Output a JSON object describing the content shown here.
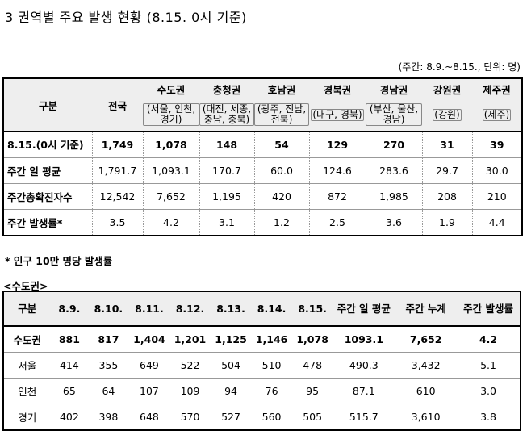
{
  "title": "3 권역별 주요 발생 현황 (8.15. 0시 기준)",
  "unit_note": "(주간: 8.9.~8.15., 단위: 명)",
  "table1": {
    "corner": "구분",
    "total_header": "전국",
    "regions": [
      {
        "name": "수도권",
        "sub": "(서울, 인천, 경기)"
      },
      {
        "name": "충청권",
        "sub": "(대전, 세종, 충남, 충북)"
      },
      {
        "name": "호남권",
        "sub": "(광주, 전남, 전북)"
      },
      {
        "name": "경북권",
        "sub": "(대구, 경북)"
      },
      {
        "name": "경남권",
        "sub": "(부산, 울산, 경남)"
      },
      {
        "name": "강원권",
        "sub": "(강원)"
      },
      {
        "name": "제주권",
        "sub": "(제주)"
      }
    ],
    "rows": [
      {
        "label": "8.15.(0시 기준)",
        "values": [
          "1,749",
          "1,078",
          "148",
          "54",
          "129",
          "270",
          "31",
          "39"
        ]
      },
      {
        "label": "주간 일 평균",
        "values": [
          "1,791.7",
          "1,093.1",
          "170.7",
          "60.0",
          "124.6",
          "283.6",
          "29.7",
          "30.0"
        ]
      },
      {
        "label": "주간총확진자수",
        "values": [
          "12,542",
          "7,652",
          "1,195",
          "420",
          "872",
          "1,985",
          "208",
          "210"
        ]
      },
      {
        "label": "주간 발생률*",
        "values": [
          "3.5",
          "4.2",
          "3.1",
          "1.2",
          "2.5",
          "3.6",
          "1.9",
          "4.4"
        ]
      }
    ]
  },
  "footnote": "* 인구 10만 명당 발생률",
  "section_label": "<수도권>",
  "table2": {
    "headers": [
      "구분",
      "8.9.",
      "8.10.",
      "8.11.",
      "8.12.",
      "8.13.",
      "8.14.",
      "8.15.",
      "주간 일 평균",
      "주간 누계",
      "주간 발생률"
    ],
    "rows": [
      {
        "label": "수도권",
        "values": [
          "881",
          "817",
          "1,404",
          "1,201",
          "1,125",
          "1,146",
          "1,078",
          "1093.1",
          "7,652",
          "4.2"
        ]
      },
      {
        "label": "서울",
        "values": [
          "414",
          "355",
          "649",
          "522",
          "504",
          "510",
          "478",
          "490.3",
          "3,432",
          "5.1"
        ]
      },
      {
        "label": "인천",
        "values": [
          "65",
          "64",
          "107",
          "109",
          "94",
          "76",
          "95",
          "87.1",
          "610",
          "3.0"
        ]
      },
      {
        "label": "경기",
        "values": [
          "402",
          "398",
          "648",
          "570",
          "527",
          "560",
          "505",
          "515.7",
          "3,610",
          "3.8"
        ]
      }
    ]
  }
}
